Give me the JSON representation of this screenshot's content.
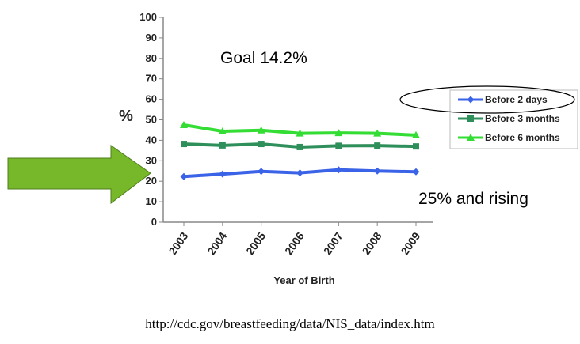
{
  "chart_data": {
    "type": "line",
    "x": [
      "2003",
      "2004",
      "2005",
      "2006",
      "2007",
      "2008",
      "2009"
    ],
    "xlabel": "Year of Birth",
    "ylabel": "%",
    "ylim": [
      0,
      100
    ],
    "yticks": [
      0,
      10,
      20,
      30,
      40,
      50,
      60,
      70,
      80,
      90,
      100
    ],
    "grid": false,
    "legend_position": "right",
    "series": [
      {
        "name": "Before 2 days",
        "color": "#3a63e8",
        "marker": "diamond",
        "values": [
          22.3,
          23.5,
          24.8,
          24.1,
          25.6,
          25.0,
          24.6
        ]
      },
      {
        "name": "Before 3 months",
        "color": "#2f8f5a",
        "marker": "square",
        "values": [
          38.2,
          37.5,
          38.2,
          36.7,
          37.3,
          37.4,
          37.0
        ]
      },
      {
        "name": "Before 6 months",
        "color": "#33dd33",
        "marker": "triangle",
        "values": [
          47.5,
          44.4,
          44.9,
          43.4,
          43.6,
          43.4,
          42.5
        ]
      }
    ],
    "annotations": [
      "Goal 14.2%",
      "25% and rising"
    ]
  },
  "source": "http://cdc.gov/breastfeeding/data/NIS_data/index.htm",
  "colors": {
    "arrow": "#77b82a",
    "arrow_stroke": "#4f7d1c",
    "ellipse": "#000000",
    "axis": "#888888"
  }
}
